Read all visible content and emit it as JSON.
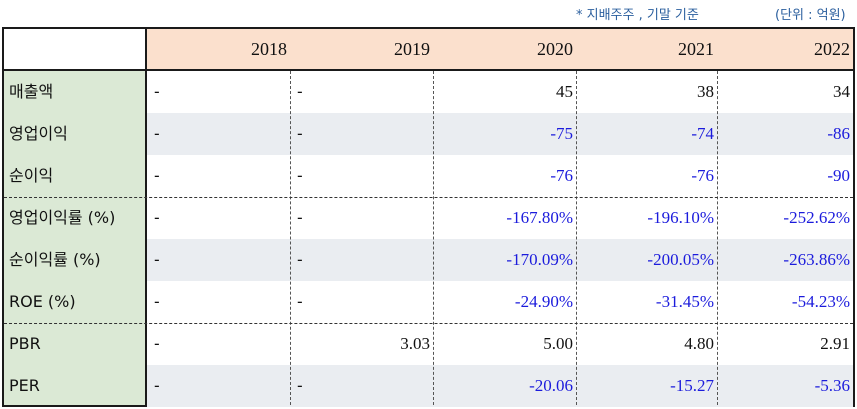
{
  "notes": {
    "basis": "* 지배주주 , 기말 기준",
    "unit": "(단위 : 억원)"
  },
  "table": {
    "years": [
      "2018",
      "2019",
      "2020",
      "2021",
      "2022"
    ],
    "rows": [
      {
        "label": "매출액",
        "values": [
          "-",
          "-",
          "45",
          "38",
          "34"
        ]
      },
      {
        "label": "영업이익",
        "values": [
          "-",
          "-",
          "-75",
          "-74",
          "-86"
        ]
      },
      {
        "label": "순이익",
        "values": [
          "-",
          "-",
          "-76",
          "-76",
          "-90"
        ]
      },
      {
        "label": "영업이익률 (%)",
        "values": [
          "-",
          "-",
          "-167.80%",
          "-196.10%",
          "-252.62%"
        ]
      },
      {
        "label": "순이익률 (%)",
        "values": [
          "-",
          "-",
          "-170.09%",
          "-200.05%",
          "-263.86%"
        ]
      },
      {
        "label": "ROE (%)",
        "values": [
          "-",
          "-",
          "-24.90%",
          "-31.45%",
          "-54.23%"
        ]
      },
      {
        "label": "PBR",
        "values": [
          "-",
          "3.03",
          "5.00",
          "4.80",
          "2.91"
        ]
      },
      {
        "label": "PER",
        "values": [
          "-",
          "-",
          "-20.06",
          "-15.27",
          "-5.36"
        ]
      }
    ]
  },
  "colors": {
    "header_bg": "#fbe0cd",
    "label_bg": "#dbe9d5",
    "shaded_row_bg": "#eaedf1",
    "negative_text": "#1b1bdc",
    "note_text": "#2b5f9e"
  }
}
